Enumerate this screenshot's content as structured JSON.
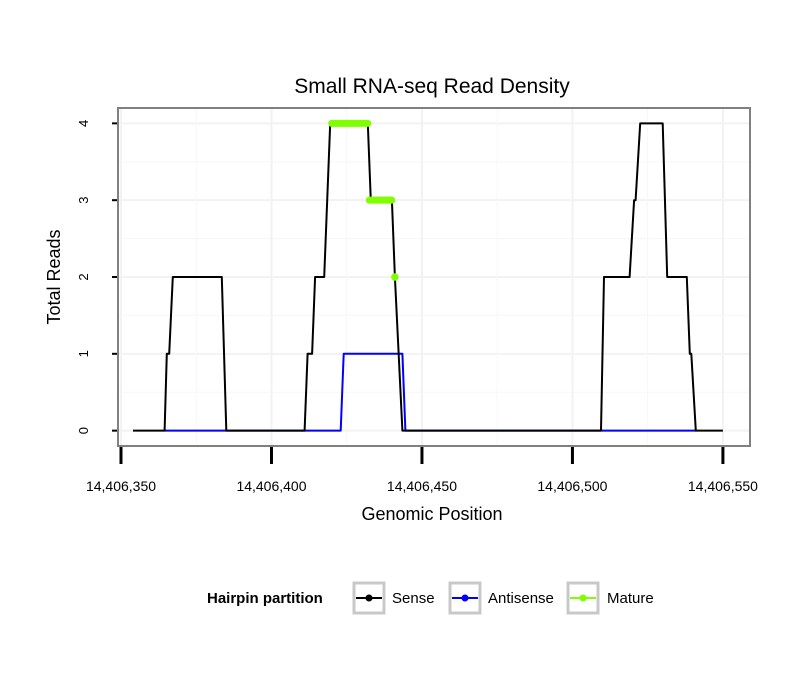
{
  "chart_data": {
    "type": "line",
    "title": "Small RNA-seq Read Density",
    "xlabel": "Genomic Position",
    "ylabel": "Total Reads",
    "xlim": [
      14406349,
      14406559
    ],
    "ylim": [
      -0.2,
      4.2
    ],
    "x_ticks": [
      14406350,
      14406400,
      14406450,
      14406500,
      14406550
    ],
    "x_tick_labels": [
      "14,406,350",
      "14,406,400",
      "14,406,450",
      "14,406,500",
      "14,406,550"
    ],
    "y_ticks": [
      0,
      1,
      2,
      3,
      4
    ],
    "y_tick_labels": [
      "0",
      "1",
      "2",
      "3",
      "4"
    ],
    "grid": true,
    "legend": {
      "title": "Hairpin partition",
      "placement": "bottom",
      "entries": [
        "Sense",
        "Antisense",
        "Mature"
      ]
    },
    "series": [
      {
        "name": "Sense",
        "color": "#000000",
        "points": [
          [
            14406354,
            0
          ],
          [
            14406364.5,
            0
          ],
          [
            14406365.2,
            1
          ],
          [
            14406366,
            1
          ],
          [
            14406367.2,
            2
          ],
          [
            14406383.5,
            2
          ],
          [
            14406385,
            0
          ],
          [
            14406411,
            0
          ],
          [
            14406412,
            1
          ],
          [
            14406413.5,
            1
          ],
          [
            14406414.5,
            2
          ],
          [
            14406417.5,
            2
          ],
          [
            14406419.5,
            4
          ],
          [
            14406432,
            4
          ],
          [
            14406433,
            3
          ],
          [
            14406440,
            3
          ],
          [
            14406441,
            2
          ],
          [
            14406443.5,
            0
          ],
          [
            14406509.5,
            0
          ],
          [
            14406510.5,
            2
          ],
          [
            14406519,
            2
          ],
          [
            14406520.5,
            3
          ],
          [
            14406521,
            3
          ],
          [
            14406522.5,
            4
          ],
          [
            14406530,
            4
          ],
          [
            14406531.5,
            2
          ],
          [
            14406538,
            2
          ],
          [
            14406539,
            1
          ],
          [
            14406539.5,
            1
          ],
          [
            14406541,
            0
          ],
          [
            14406550,
            0
          ]
        ]
      },
      {
        "name": "Antisense",
        "color": "#0000ff",
        "points": [
          [
            14406364.5,
            0
          ],
          [
            14406385,
            0
          ],
          [
            14406411,
            0
          ],
          [
            14406423,
            0
          ],
          [
            14406424,
            1
          ],
          [
            14406443.5,
            1
          ],
          [
            14406444.5,
            0
          ],
          [
            14406509.5,
            0
          ],
          [
            14406541,
            0
          ]
        ]
      },
      {
        "name": "Mature",
        "color": "#7fff00",
        "segments": [
          {
            "x": [
              14406420,
              14406432
            ],
            "y": 4
          },
          {
            "x": [
              14406432.5,
              14406440
            ],
            "y": 3
          },
          {
            "x": [
              14406441,
              14406441
            ],
            "y": 2
          }
        ]
      }
    ]
  }
}
